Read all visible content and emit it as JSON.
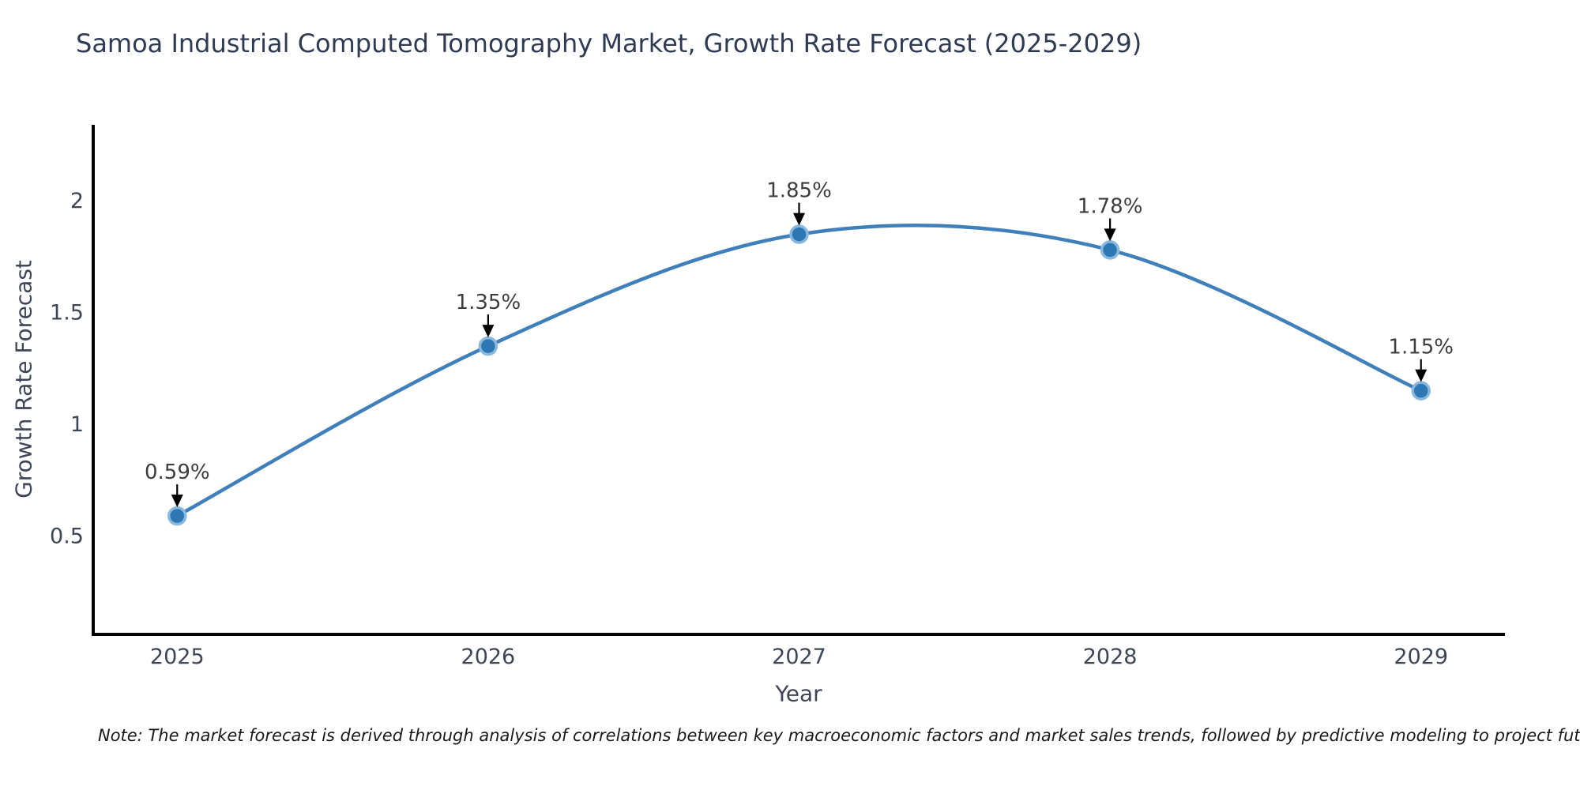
{
  "title": "Samoa Industrial Computed Tomography Market, Growth Rate Forecast (2025-2029)",
  "note": "Note: The market forecast is derived through analysis of correlations between key macroeconomic factors and market sales trends, followed by predictive modeling to project future sales",
  "chart_data": {
    "type": "line",
    "title": "Samoa Industrial Computed Tomography Market, Growth Rate Forecast (2025-2029)",
    "xlabel": "Year",
    "ylabel": "Growth Rate Forecast",
    "x": [
      2025,
      2026,
      2027,
      2028,
      2029
    ],
    "values": [
      0.59,
      1.35,
      1.85,
      1.78,
      1.15
    ],
    "point_labels": [
      "0.59%",
      "1.35%",
      "1.85%",
      "1.78%",
      "1.15%"
    ],
    "xticks": [
      2025,
      2026,
      2027,
      2028,
      2029
    ],
    "yticks": [
      0.5,
      1,
      1.5,
      2
    ],
    "xlim": [
      2024.73,
      2029.27
    ],
    "ylim": [
      0.06,
      2.34
    ],
    "grid": false,
    "legend": "none",
    "curve": "spline",
    "colors": {
      "line": "#3f80ba",
      "marker_fill": "#2d77b5",
      "marker_edge": "#8ab7dc",
      "axis": "#000000",
      "arrow": "#000000",
      "tick_text": "#3c4657",
      "annotation_text": "#3d3d3d",
      "title_text": "#2f3b52"
    }
  }
}
